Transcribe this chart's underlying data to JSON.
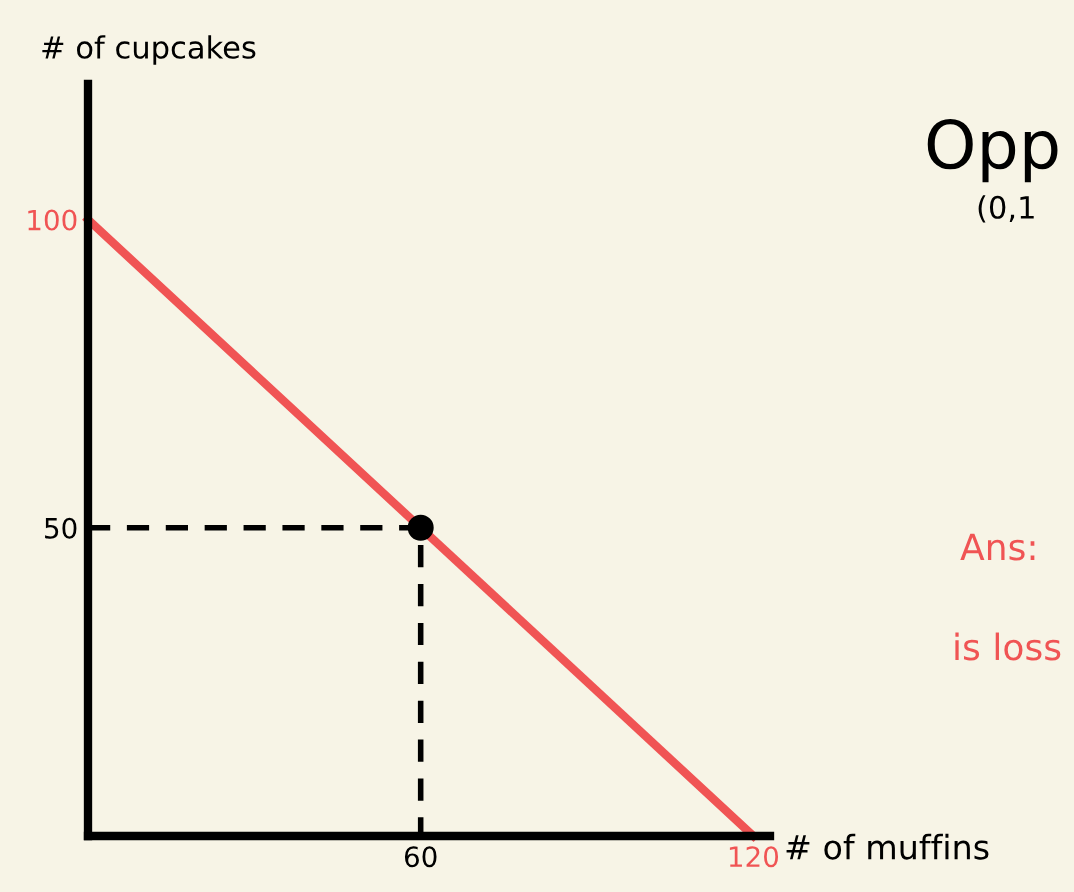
{
  "chart_data": {
    "type": "line",
    "xlabel": "# of muffins",
    "ylabel": "# of cupcakes",
    "xlim": [
      0,
      123
    ],
    "ylim": [
      0,
      122
    ],
    "xticks": [
      60,
      120
    ],
    "yticks": [
      50,
      100
    ],
    "series": [
      {
        "x": [
          0,
          120
        ],
        "values": [
          100,
          0
        ],
        "color": "#f05454",
        "line_style": "solid",
        "marker": "none"
      },
      {
        "x": [
          0,
          60,
          60
        ],
        "values": [
          50,
          50,
          0
        ],
        "color": "#000000",
        "line_style": "dashed",
        "marker": "none"
      },
      {
        "type": "scatter",
        "x": [
          60
        ],
        "values": [
          50
        ],
        "color": "#000000",
        "marker": "circle"
      }
    ],
    "annotations": [
      "Opp",
      "(0,1",
      "Ans:",
      "is loss"
    ],
    "grid": false,
    "legend": false
  }
}
